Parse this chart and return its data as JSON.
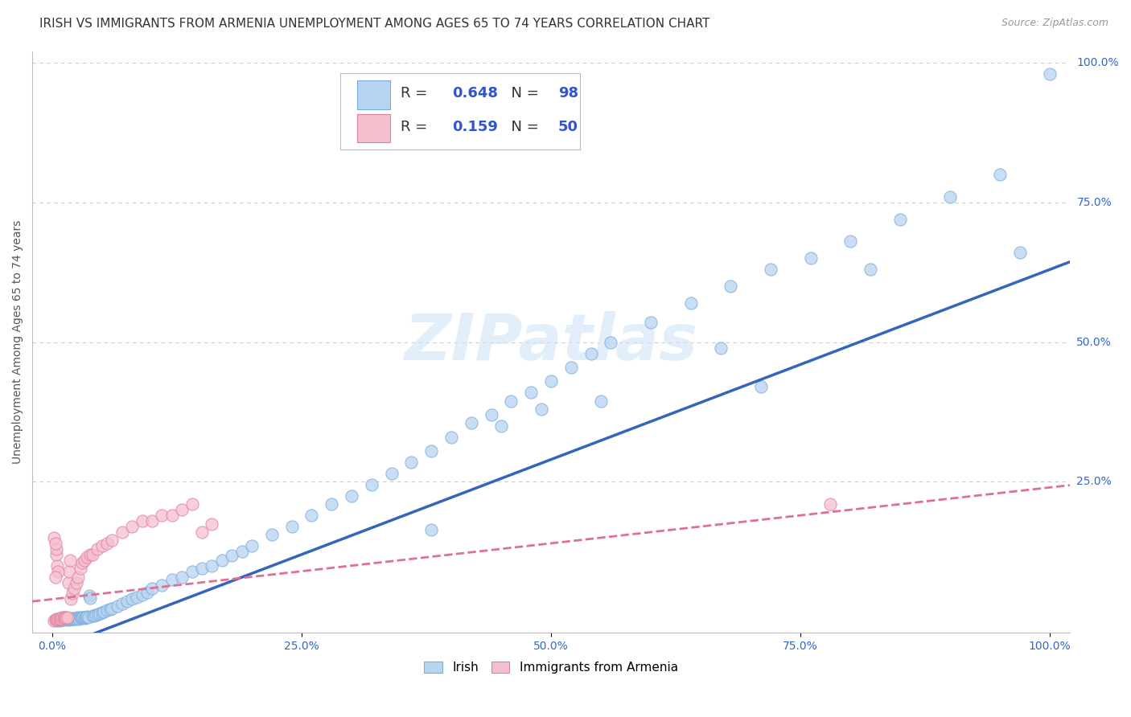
{
  "title": "IRISH VS IMMIGRANTS FROM ARMENIA UNEMPLOYMENT AMONG AGES 65 TO 74 YEARS CORRELATION CHART",
  "source": "Source: ZipAtlas.com",
  "ylabel": "Unemployment Among Ages 65 to 74 years",
  "watermark": "ZIPatlas",
  "xlim": [
    -0.02,
    1.02
  ],
  "ylim": [
    -0.02,
    1.02
  ],
  "ytick_positions": [
    0.25,
    0.5,
    0.75,
    1.0
  ],
  "yticklabels": [
    "25.0%",
    "50.0%",
    "75.0%",
    "100.0%"
  ],
  "xtick_positions": [
    0.0,
    0.25,
    0.5,
    0.75,
    1.0
  ],
  "xticklabels": [
    "0.0%",
    "25.0%",
    "50.0%",
    "75.0%",
    "100.0%"
  ],
  "irish_R": 0.648,
  "irish_N": 98,
  "armenia_R": 0.159,
  "armenia_N": 50,
  "irish_color": "#b8d4f0",
  "irish_edge_color": "#7aabdd",
  "armenia_color": "#f5c0ce",
  "armenia_edge_color": "#e080a0",
  "irish_line_color": "#3366bb",
  "armenia_line_color": "#e07090",
  "legend_text_color": "#333333",
  "legend_val_color": "#3355cc",
  "background_color": "#ffffff",
  "grid_color": "#cccccc",
  "title_color": "#333333",
  "title_fontsize": 11,
  "axis_label_fontsize": 10,
  "tick_label_color": "#3366cc",
  "watermark_color": "#d0e4f5",
  "watermark_alpha": 0.6,
  "scatter_size": 120,
  "scatter_alpha": 0.75,
  "irish_x": [
    0.005,
    0.006,
    0.007,
    0.008,
    0.009,
    0.01,
    0.011,
    0.012,
    0.013,
    0.014,
    0.015,
    0.016,
    0.017,
    0.018,
    0.019,
    0.02,
    0.021,
    0.022,
    0.023,
    0.024,
    0.025,
    0.026,
    0.027,
    0.028,
    0.029,
    0.03,
    0.031,
    0.032,
    0.033,
    0.034,
    0.035,
    0.036,
    0.037,
    0.038,
    0.04,
    0.042,
    0.044,
    0.046,
    0.048,
    0.05,
    0.052,
    0.055,
    0.058,
    0.06,
    0.065,
    0.07,
    0.075,
    0.08,
    0.085,
    0.09,
    0.095,
    0.1,
    0.11,
    0.12,
    0.13,
    0.14,
    0.15,
    0.16,
    0.17,
    0.18,
    0.19,
    0.2,
    0.22,
    0.24,
    0.26,
    0.28,
    0.3,
    0.32,
    0.34,
    0.36,
    0.38,
    0.4,
    0.42,
    0.44,
    0.46,
    0.48,
    0.5,
    0.52,
    0.54,
    0.56,
    0.6,
    0.64,
    0.68,
    0.72,
    0.76,
    0.8,
    0.85,
    0.9,
    0.95,
    0.97,
    0.82,
    1.0,
    0.67,
    0.71,
    0.55,
    0.49,
    0.45,
    0.38
  ],
  "irish_y": [
    0.002,
    0.003,
    0.004,
    0.002,
    0.005,
    0.003,
    0.004,
    0.006,
    0.003,
    0.004,
    0.005,
    0.004,
    0.003,
    0.005,
    0.004,
    0.006,
    0.005,
    0.004,
    0.006,
    0.005,
    0.007,
    0.006,
    0.005,
    0.007,
    0.006,
    0.008,
    0.007,
    0.006,
    0.008,
    0.007,
    0.009,
    0.008,
    0.047,
    0.042,
    0.01,
    0.011,
    0.012,
    0.013,
    0.015,
    0.016,
    0.018,
    0.02,
    0.022,
    0.024,
    0.028,
    0.032,
    0.036,
    0.04,
    0.044,
    0.048,
    0.052,
    0.06,
    0.065,
    0.075,
    0.08,
    0.09,
    0.095,
    0.1,
    0.11,
    0.118,
    0.125,
    0.135,
    0.155,
    0.17,
    0.19,
    0.21,
    0.225,
    0.245,
    0.265,
    0.285,
    0.305,
    0.33,
    0.355,
    0.37,
    0.395,
    0.41,
    0.43,
    0.455,
    0.48,
    0.5,
    0.535,
    0.57,
    0.6,
    0.63,
    0.65,
    0.68,
    0.72,
    0.76,
    0.8,
    0.66,
    0.63,
    0.98,
    0.49,
    0.42,
    0.395,
    0.38,
    0.35,
    0.165
  ],
  "armenia_x": [
    0.002,
    0.003,
    0.004,
    0.005,
    0.006,
    0.007,
    0.008,
    0.009,
    0.01,
    0.011,
    0.012,
    0.013,
    0.014,
    0.015,
    0.016,
    0.017,
    0.018,
    0.019,
    0.02,
    0.022,
    0.024,
    0.026,
    0.028,
    0.03,
    0.032,
    0.035,
    0.038,
    0.04,
    0.045,
    0.05,
    0.055,
    0.06,
    0.07,
    0.08,
    0.09,
    0.1,
    0.11,
    0.12,
    0.13,
    0.14,
    0.15,
    0.004,
    0.005,
    0.006,
    0.003,
    0.004,
    0.002,
    0.003,
    0.78,
    0.16
  ],
  "armenia_y": [
    0.002,
    0.003,
    0.004,
    0.003,
    0.005,
    0.004,
    0.006,
    0.005,
    0.007,
    0.006,
    0.008,
    0.007,
    0.006,
    0.008,
    0.07,
    0.09,
    0.11,
    0.04,
    0.05,
    0.06,
    0.07,
    0.08,
    0.095,
    0.105,
    0.11,
    0.115,
    0.12,
    0.12,
    0.13,
    0.135,
    0.14,
    0.145,
    0.16,
    0.17,
    0.18,
    0.18,
    0.19,
    0.19,
    0.2,
    0.21,
    0.16,
    0.12,
    0.1,
    0.09,
    0.08,
    0.13,
    0.15,
    0.14,
    0.21,
    0.175
  ]
}
